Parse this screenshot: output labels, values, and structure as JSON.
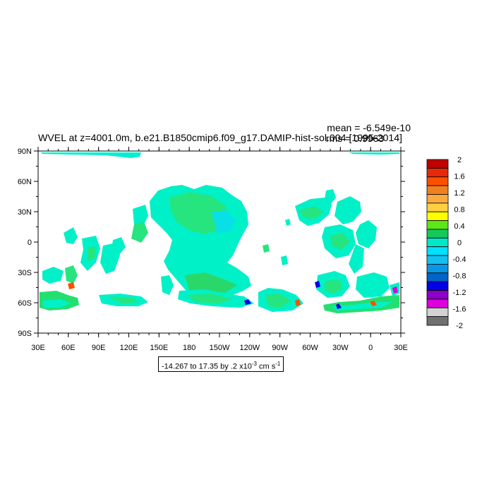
{
  "title": "WVEL at z=4001.0m, b.e21.B1850cmip6.f09_g17.DAMIP-hist-sol.004 [1995-2014]",
  "stats": {
    "mean": "mean = -6.549e-10",
    "rms": "rms = 0.9963"
  },
  "range_label": {
    "main": "-14.267 to 17.35 by .2 x10",
    "exp": "-3",
    "units": " cm s",
    "units_exp": "-1"
  },
  "lat_labels": [
    "90N",
    "60N",
    "30N",
    "0",
    "30S",
    "60S",
    "90S"
  ],
  "lon_labels": [
    "30E",
    "60E",
    "90E",
    "120E",
    "150E",
    "180",
    "150W",
    "120W",
    "90W",
    "60W",
    "30W",
    "0",
    "30E"
  ],
  "colorbar": {
    "labels": [
      "2",
      "1.6",
      "1.2",
      "0.8",
      "0.4",
      "0",
      "-0.4",
      "-0.8",
      "-1.2",
      "-1.6",
      "-2"
    ],
    "colors": [
      "#c00000",
      "#e8280a",
      "#ff5000",
      "#f08020",
      "#ffaa40",
      "#ffd040",
      "#ffff00",
      "#5ae818",
      "#16c85a",
      "#00e8c8",
      "#00e0ff",
      "#14c0f0",
      "#0a96e6",
      "#0064c8",
      "#0000e6",
      "#8c00c8",
      "#dc00dc",
      "#d2d2d2",
      "#707070"
    ]
  }
}
